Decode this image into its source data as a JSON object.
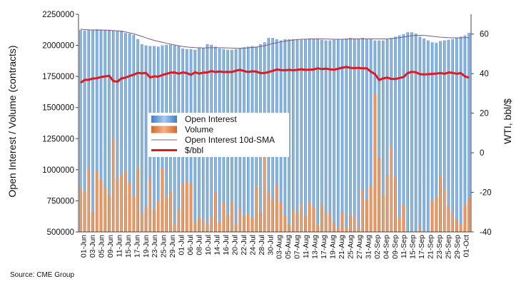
{
  "source": "Source: CME Group",
  "colors": {
    "open_interest": "#5b9bd5",
    "volume": "#ed7d31",
    "sma": "#7a5c8a",
    "price": "#e31a1c"
  },
  "chart_data": {
    "type": "bar",
    "xlabel": "",
    "ylabel": "Open Interest / Volume (contracts)",
    "ylabel_right": "WTI, bbl/$",
    "ylim": [
      500000,
      2250000
    ],
    "yticks": [
      500000,
      750000,
      1000000,
      1250000,
      1500000,
      1750000,
      2000000,
      2250000
    ],
    "ylim_right": [
      -40,
      70
    ],
    "yticks_right": [
      -40,
      -20,
      0,
      20,
      40,
      60
    ],
    "legend_position": "center-left",
    "grid": false,
    "x_tick_labels": [
      "01-Jun",
      "03-Jun",
      "05-Jun",
      "09-Jun",
      "11-Jun",
      "15-Jun",
      "17-Jun",
      "19-Jun",
      "23-Jun",
      "25-Jun",
      "29-Jun",
      "01-Jul",
      "06-Jul",
      "08-Jul",
      "10-Jul",
      "14-Jul",
      "16-Jul",
      "20-Jul",
      "22-Jul",
      "24-Jul",
      "28-Jul",
      "30-Jul",
      "03-Aug",
      "05-Aug",
      "07-Aug",
      "11-Aug",
      "13-Aug",
      "17-Aug",
      "19-Aug",
      "21-Aug",
      "25-Aug",
      "27-Aug",
      "31-Aug",
      "02-Sep",
      "04-Sep",
      "09-Sep",
      "11-Sep",
      "15-Sep",
      "17-Sep",
      "21-Sep",
      "23-Sep",
      "25-Sep",
      "29-Sep",
      "01-Oct"
    ],
    "series": [
      {
        "name": "Open Interest",
        "type": "bar",
        "values": [
          2125000,
          2120000,
          2125000,
          2125000,
          2130000,
          2128000,
          2126000,
          2125000,
          2120000,
          2118000,
          2118000,
          2100000,
          2095000,
          2085000,
          2050000,
          2010000,
          2000000,
          1995000,
          1995000,
          1990000,
          2000000,
          2005000,
          2005000,
          2000000,
          1995000,
          1975000,
          1970000,
          1970000,
          1965000,
          1980000,
          1980000,
          2010000,
          2005000,
          1990000,
          1975000,
          1970000,
          1965000,
          1965000,
          1970000,
          1975000,
          1985000,
          1990000,
          1995000,
          1990000,
          2010000,
          2025000,
          2060000,
          2060000,
          2050000,
          2040000,
          2050000,
          2050000,
          2050000,
          2045000,
          2045000,
          2050000,
          2055000,
          2055000,
          2050000,
          2045000,
          2040000,
          2040000,
          2045000,
          2050000,
          2050000,
          2055000,
          2060000,
          2055000,
          2050000,
          2060000,
          2050000,
          2050000,
          2040000,
          2040000,
          2040000,
          2050000,
          2060000,
          2070000,
          2080000,
          2090000,
          2105000,
          2105000,
          2095000,
          2070000,
          2055000,
          2040000,
          2025000,
          2020000,
          2035000,
          2040000,
          2045000,
          2050000,
          2060000,
          2070000,
          2080000,
          2100000
        ]
      },
      {
        "name": "Volume",
        "type": "bar",
        "values": [
          850000,
          820000,
          1010000,
          660000,
          990000,
          920000,
          850000,
          800000,
          1250000,
          930000,
          960000,
          990000,
          900000,
          790000,
          1010000,
          650000,
          700000,
          930000,
          680000,
          750000,
          1010000,
          780000,
          830000,
          560000,
          680000,
          890000,
          910000,
          890000,
          580000,
          620000,
          600000,
          560000,
          620000,
          820000,
          580000,
          740000,
          640000,
          740000,
          560000,
          680000,
          630000,
          650000,
          610000,
          870000,
          660000,
          1220000,
          820000,
          760000,
          880000,
          740000,
          630000,
          560000,
          680000,
          650000,
          720000,
          630000,
          740000,
          700000,
          560000,
          720000,
          660000,
          650000,
          580000,
          530000,
          660000,
          530000,
          640000,
          620000,
          530000,
          840000,
          760000,
          870000,
          1610000,
          1100000,
          800000,
          960000,
          1190000,
          940000,
          610000,
          720000,
          490000,
          460000,
          480000,
          540000,
          460000,
          420000,
          750000,
          780000,
          950000,
          840000,
          700000,
          650000,
          600000,
          560000,
          720000,
          770000
        ]
      },
      {
        "name": "Open Interest 10d-SMA",
        "type": "line",
        "values": [
          2130000,
          2127000,
          2125000,
          2124000,
          2123000,
          2123000,
          2122000,
          2121000,
          2119000,
          2117000,
          2113000,
          2108000,
          2101000,
          2093000,
          2083000,
          2072000,
          2061000,
          2050000,
          2040000,
          2032000,
          2025000,
          2018000,
          2010000,
          2003000,
          1997000,
          1991000,
          1987000,
          1984000,
          1982000,
          1981000,
          1979000,
          1980000,
          1981000,
          1981000,
          1981000,
          1980000,
          1979000,
          1978000,
          1977000,
          1977000,
          1978000,
          1980000,
          1983000,
          1986000,
          1991000,
          1997000,
          2006000,
          2014000,
          2021000,
          2028000,
          2034000,
          2039000,
          2043000,
          2047000,
          2049000,
          2050000,
          2051000,
          2052000,
          2052000,
          2052000,
          2051000,
          2050000,
          2049000,
          2049000,
          2049000,
          2050000,
          2051000,
          2052000,
          2052000,
          2053000,
          2053000,
          2053000,
          2053000,
          2052000,
          2052000,
          2053000,
          2055000,
          2058000,
          2062000,
          2067000,
          2072000,
          2077000,
          2080000,
          2081000,
          2080000,
          2077000,
          2073000,
          2069000,
          2066000,
          2064000,
          2062000,
          2061000,
          2061000,
          2061000,
          2062000,
          2063000
        ]
      },
      {
        "name": "$/bbl",
        "type": "line",
        "axis": "right",
        "values": [
          35.4,
          36.8,
          36.9,
          37.5,
          37.7,
          38.3,
          38.6,
          38.9,
          36.3,
          35.9,
          37.6,
          38.0,
          38.8,
          39.5,
          40.4,
          40.1,
          40.4,
          38.1,
          38.6,
          38.5,
          39.3,
          39.9,
          40.5,
          40.6,
          40.0,
          40.6,
          40.3,
          39.4,
          40.7,
          40.0,
          40.5,
          40.6,
          41.3,
          40.8,
          41.1,
          40.8,
          40.9,
          40.8,
          41.5,
          41.9,
          41.3,
          40.8,
          41.2,
          41.0,
          40.3,
          40.3,
          40.8,
          41.4,
          42.1,
          41.8,
          41.7,
          41.9,
          41.7,
          41.9,
          42.2,
          41.9,
          42.0,
          42.1,
          42.7,
          42.3,
          42.5,
          42.2,
          42.0,
          42.5,
          43.0,
          43.4,
          42.9,
          42.8,
          42.9,
          42.7,
          42.7,
          41.0,
          39.8,
          36.8,
          37.6,
          38.0,
          37.3,
          37.3,
          37.8,
          38.3,
          40.3,
          40.9,
          40.7,
          39.7,
          39.6,
          39.7,
          39.9,
          40.0,
          40.3,
          39.9,
          40.6,
          40.4,
          39.9,
          40.3,
          38.6,
          37.9
        ]
      }
    ]
  }
}
